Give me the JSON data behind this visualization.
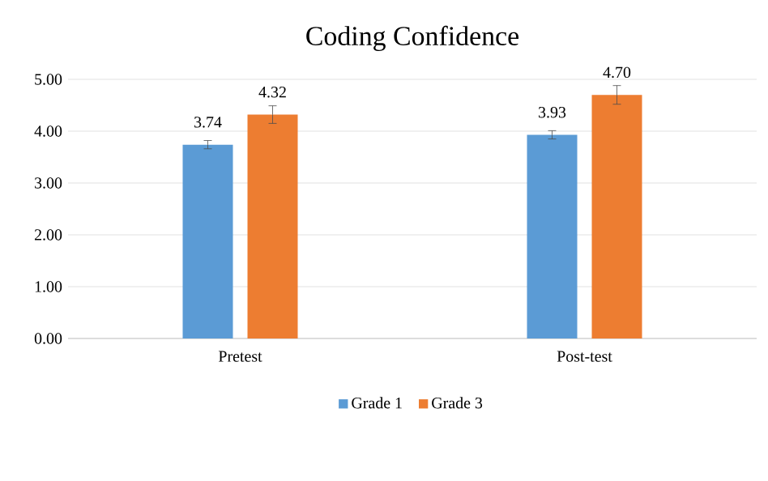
{
  "chart_data": {
    "type": "bar",
    "title": "Coding Confidence",
    "categories": [
      "Pretest",
      "Post-test"
    ],
    "series": [
      {
        "name": "Grade 1",
        "color": "#5b9bd5",
        "values": [
          3.74,
          3.93
        ],
        "errors": [
          0.08,
          0.08
        ],
        "value_labels": [
          "3.74",
          "3.93"
        ]
      },
      {
        "name": "Grade 3",
        "color": "#ed7d31",
        "values": [
          4.32,
          4.7
        ],
        "errors": [
          0.17,
          0.18
        ],
        "value_labels": [
          "4.32",
          "4.70"
        ]
      }
    ],
    "ylim": [
      0,
      5
    ],
    "yticks": [
      {
        "value": 0,
        "label": "0.00"
      },
      {
        "value": 1,
        "label": "1.00"
      },
      {
        "value": 2,
        "label": "2.00"
      },
      {
        "value": 3,
        "label": "3.00"
      },
      {
        "value": 4,
        "label": "4.00"
      },
      {
        "value": 5,
        "label": "5.00"
      }
    ],
    "grid": "y",
    "legend": "bottom"
  }
}
